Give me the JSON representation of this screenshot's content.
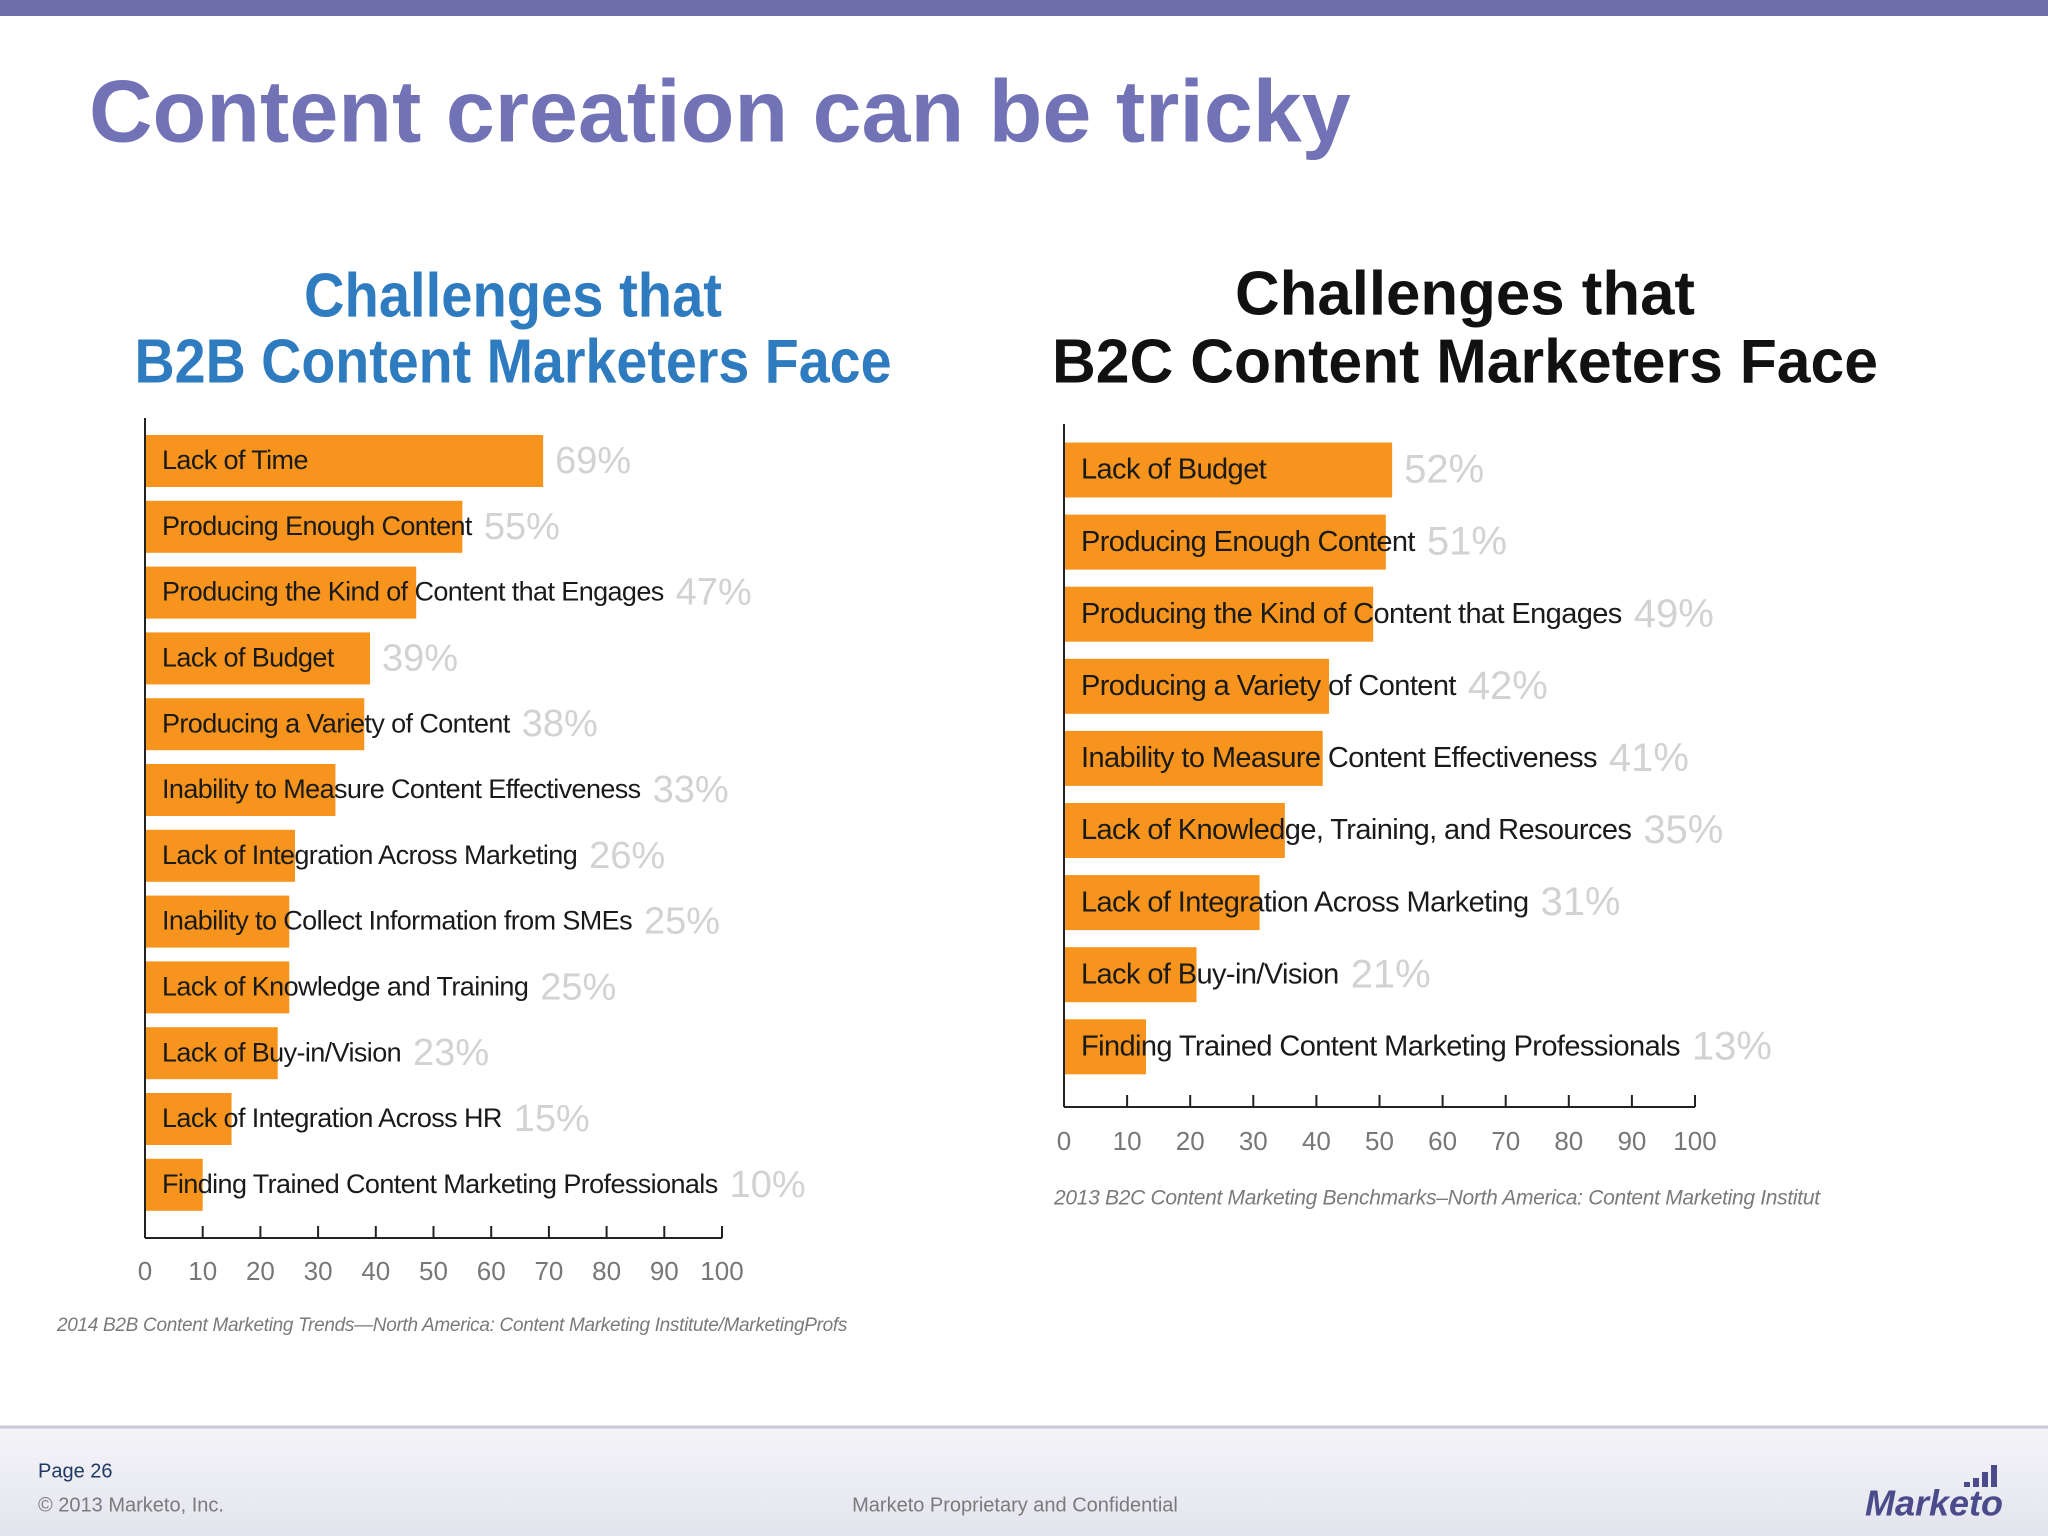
{
  "title": "Content creation can be tricky",
  "chart_data": [
    {
      "type": "bar",
      "orientation": "horizontal",
      "title": [
        "Challenges that",
        "B2B Content Marketers Face"
      ],
      "title_color": "#2e7cbf",
      "categories": [
        "Lack of Time",
        "Producing Enough Content",
        "Producing the Kind of Content that Engages",
        "Lack of Budget",
        "Producing a Variety of Content",
        "Inability to Measure Content Effectiveness",
        "Lack of Integration Across Marketing",
        "Inability to Collect Information from SMEs",
        "Lack of Knowledge and Training",
        "Lack of Buy-in/Vision",
        "Lack of Integration Across HR",
        "Finding Trained Content Marketing Professionals"
      ],
      "values": [
        69,
        55,
        47,
        39,
        38,
        33,
        26,
        25,
        25,
        23,
        15,
        10
      ],
      "value_labels": [
        "69%",
        "55%",
        "47%",
        "39%",
        "38%",
        "33%",
        "26%",
        "25%",
        "25%",
        "23%",
        "15%",
        "10%"
      ],
      "color": "#f7941d",
      "xlim": [
        0,
        100
      ],
      "xticks": [
        0,
        10,
        20,
        30,
        40,
        50,
        60,
        70,
        80,
        90,
        100
      ],
      "source": "2014 B2B Content Marketing Trends—North America: Content Marketing Institute/MarketingProfs"
    },
    {
      "type": "bar",
      "orientation": "horizontal",
      "title": [
        "Challenges that",
        "B2C Content Marketers Face"
      ],
      "title_color": "#111111",
      "categories": [
        "Lack of Budget",
        "Producing Enough Content",
        "Producing the Kind of Content that Engages",
        "Producing a Variety of Content",
        "Inability to Measure Content Effectiveness",
        "Lack of Knowledge, Training, and Resources",
        "Lack of Integration Across Marketing",
        "Lack of Buy-in/Vision",
        "Finding Trained Content Marketing Professionals"
      ],
      "values": [
        52,
        51,
        49,
        42,
        41,
        35,
        31,
        21,
        13
      ],
      "value_labels": [
        "52%",
        "51%",
        "49%",
        "42%",
        "41%",
        "35%",
        "31%",
        "21%",
        "13%"
      ],
      "color": "#f7941d",
      "xlim": [
        0,
        100
      ],
      "xticks": [
        0,
        10,
        20,
        30,
        40,
        50,
        60,
        70,
        80,
        90,
        100
      ],
      "source": "2013 B2C Content Marketing Benchmarks–North America: Content Marketing Institut"
    }
  ],
  "footer": {
    "page": "Page 26",
    "copyright": "© 2013 Marketo, Inc.",
    "confidential": "Marketo Proprietary and Confidential",
    "logo": "Marketo"
  }
}
